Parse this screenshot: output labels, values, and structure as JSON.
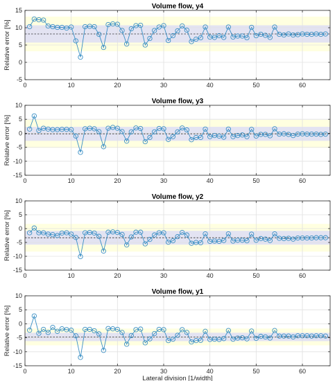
{
  "colors": {
    "band_outer": "#ffffe0",
    "band_inner": "#e3e3f2",
    "series": "#3a8fc4",
    "mean_line": "#333333",
    "grid": "#e0e0e0",
    "axes": "#262626"
  },
  "xlabel": "Lateral division [1/width]",
  "chart_data": [
    {
      "type": "line",
      "title": "Volume flow, y4",
      "ylabel": "Relative error [%]",
      "xlim": [
        0,
        66
      ],
      "ylim": [
        -5,
        15
      ],
      "xticks": [
        0,
        10,
        20,
        30,
        40,
        50,
        60
      ],
      "yticks": [
        -5,
        0,
        5,
        10,
        15
      ],
      "grid": true,
      "mean": 8.2,
      "band_outer": [
        3.2,
        13.2
      ],
      "band_inner": [
        5.7,
        10.7
      ],
      "x": [
        1,
        2,
        3,
        4,
        5,
        6,
        7,
        8,
        9,
        10,
        11,
        12,
        13,
        14,
        15,
        16,
        17,
        18,
        19,
        20,
        21,
        22,
        23,
        24,
        25,
        26,
        27,
        28,
        29,
        30,
        31,
        32,
        33,
        34,
        35,
        36,
        37,
        38,
        39,
        40,
        41,
        42,
        43,
        44,
        45,
        46,
        47,
        48,
        49,
        50,
        51,
        52,
        53,
        54,
        55,
        56,
        57,
        58,
        59,
        60,
        61,
        62,
        63,
        64,
        65
      ],
      "y": [
        10.3,
        12.5,
        12.3,
        12.2,
        10.5,
        10.3,
        10.1,
        10.1,
        9.9,
        10.2,
        6.2,
        1.5,
        10.3,
        10.4,
        10.3,
        8.1,
        4.3,
        10.9,
        11.1,
        11.0,
        9.2,
        5.3,
        9.7,
        10.6,
        10.7,
        5.0,
        6.9,
        9.2,
        10.2,
        10.6,
        6.3,
        7.7,
        9.1,
        10.5,
        9.3,
        6.0,
        6.7,
        7.1,
        10.2,
        7.3,
        7.2,
        7.7,
        7.2,
        10.2,
        7.3,
        7.6,
        7.6,
        7.1,
        10.1,
        7.7,
        8.1,
        7.8,
        7.2,
        10.2,
        8.1,
        7.9,
        8.2,
        7.9,
        8.0,
        8.2,
        8.1,
        8.1,
        8.2,
        8.1,
        8.2
      ]
    },
    {
      "type": "line",
      "title": "Volume flow, y3",
      "ylabel": "Relative error [%]",
      "xlim": [
        0,
        66
      ],
      "ylim": [
        -15,
        10
      ],
      "xticks": [
        0,
        10,
        20,
        30,
        40,
        50,
        60
      ],
      "yticks": [
        -15,
        -10,
        -5,
        0,
        5,
        10
      ],
      "grid": true,
      "mean": -0.2,
      "band_outer": [
        -5.2,
        4.8
      ],
      "band_inner": [
        -2.7,
        2.3
      ],
      "x": [
        1,
        2,
        3,
        4,
        5,
        6,
        7,
        8,
        9,
        10,
        11,
        12,
        13,
        14,
        15,
        16,
        17,
        18,
        19,
        20,
        21,
        22,
        23,
        24,
        25,
        26,
        27,
        28,
        29,
        30,
        31,
        32,
        33,
        34,
        35,
        36,
        37,
        38,
        39,
        40,
        41,
        42,
        43,
        44,
        45,
        46,
        47,
        48,
        49,
        50,
        51,
        52,
        53,
        54,
        55,
        56,
        57,
        58,
        59,
        60,
        61,
        62,
        63,
        64,
        65
      ],
      "y": [
        1.5,
        6.2,
        1.0,
        1.8,
        1.5,
        1.3,
        1.3,
        1.4,
        1.4,
        1.3,
        -1.0,
        -6.8,
        1.6,
        1.8,
        1.6,
        0.6,
        -4.8,
        1.8,
        2.1,
        1.8,
        0.6,
        -2.8,
        0.5,
        1.9,
        1.7,
        -3.0,
        -1.5,
        0.5,
        1.7,
        1.6,
        -2.2,
        -1.2,
        0.5,
        1.9,
        1.2,
        -2.3,
        -1.5,
        -1.5,
        1.5,
        -1.2,
        -0.8,
        -1.0,
        -1.4,
        1.5,
        -1.2,
        -0.8,
        -0.6,
        -1.2,
        1.4,
        -1.0,
        -0.4,
        -0.4,
        -0.9,
        1.6,
        -0.3,
        -0.2,
        -0.4,
        -0.8,
        -0.3,
        -0.2,
        -0.3,
        -0.3,
        -0.3,
        -0.4,
        -0.3
      ]
    },
    {
      "type": "line",
      "title": "Volume flow, y2",
      "ylabel": "Relative error [%]",
      "xlim": [
        0,
        66
      ],
      "ylim": [
        -15,
        10
      ],
      "xticks": [
        0,
        10,
        20,
        30,
        40,
        50,
        60
      ],
      "yticks": [
        -15,
        -10,
        -5,
        0,
        5,
        10
      ],
      "grid": true,
      "mean": -3.3,
      "band_outer": [
        -8.3,
        1.7
      ],
      "band_inner": [
        -5.8,
        -0.8
      ],
      "x": [
        1,
        2,
        3,
        4,
        5,
        6,
        7,
        8,
        9,
        10,
        11,
        12,
        13,
        14,
        15,
        16,
        17,
        18,
        19,
        20,
        21,
        22,
        23,
        24,
        25,
        26,
        27,
        28,
        29,
        30,
        31,
        32,
        33,
        34,
        35,
        36,
        37,
        38,
        39,
        40,
        41,
        42,
        43,
        44,
        45,
        46,
        47,
        48,
        49,
        50,
        51,
        52,
        53,
        54,
        55,
        56,
        57,
        58,
        59,
        60,
        61,
        62,
        63,
        64,
        65
      ],
      "y": [
        -1.5,
        0.2,
        -1.5,
        -1.5,
        -2.0,
        -2.2,
        -2.5,
        -1.6,
        -1.5,
        -2.0,
        -3.2,
        -10.1,
        -1.5,
        -1.4,
        -1.6,
        -2.8,
        -8.1,
        -1.3,
        -1.2,
        -1.4,
        -2.1,
        -5.9,
        -3.0,
        -1.3,
        -1.3,
        -5.5,
        -3.9,
        -2.3,
        -1.5,
        -1.5,
        -4.9,
        -4.4,
        -2.9,
        -1.4,
        -2.3,
        -5.3,
        -5.0,
        -5.1,
        -1.9,
        -4.6,
        -4.5,
        -4.6,
        -4.3,
        -1.9,
        -4.5,
        -4.2,
        -4.2,
        -4.4,
        -2.0,
        -4.2,
        -3.6,
        -3.8,
        -4.3,
        -1.9,
        -3.5,
        -3.6,
        -3.5,
        -3.8,
        -3.4,
        -3.4,
        -3.4,
        -3.4,
        -3.3,
        -3.3,
        -3.3
      ]
    },
    {
      "type": "line",
      "title": "Volume flow, y1",
      "ylabel": "Relative error [%]",
      "xlabel": "Lateral division [1/width]",
      "xlim": [
        0,
        66
      ],
      "ylim": [
        -15,
        10
      ],
      "xticks": [
        0,
        10,
        20,
        30,
        40,
        50,
        60
      ],
      "yticks": [
        -15,
        -10,
        -5,
        0,
        5,
        10
      ],
      "grid": true,
      "mean": -4.7,
      "band_outer": [
        -7.7,
        -1.7
      ],
      "band_inner": [
        -6.2,
        -3.2
      ],
      "x": [
        1,
        2,
        3,
        4,
        5,
        6,
        7,
        8,
        9,
        10,
        11,
        12,
        13,
        14,
        15,
        16,
        17,
        18,
        19,
        20,
        21,
        22,
        23,
        24,
        25,
        26,
        27,
        28,
        29,
        30,
        31,
        32,
        33,
        34,
        35,
        36,
        37,
        38,
        39,
        40,
        41,
        42,
        43,
        44,
        45,
        46,
        47,
        48,
        49,
        50,
        51,
        52,
        53,
        54,
        55,
        56,
        57,
        58,
        59,
        60,
        61,
        62,
        63,
        64,
        65
      ],
      "y": [
        -2.3,
        2.8,
        -3.4,
        -2.0,
        -3.1,
        -1.3,
        -2.7,
        -1.8,
        -2.1,
        -2.3,
        -4.3,
        -12.0,
        -2.0,
        -2.0,
        -2.5,
        -3.6,
        -9.5,
        -1.7,
        -1.8,
        -2.0,
        -3.1,
        -7.3,
        -4.2,
        -2.1,
        -1.9,
        -6.8,
        -5.4,
        -3.5,
        -2.0,
        -2.1,
        -6.0,
        -5.5,
        -4.1,
        -2.1,
        -3.1,
        -6.5,
        -6.0,
        -5.9,
        -2.7,
        -5.6,
        -5.5,
        -5.6,
        -5.3,
        -2.4,
        -5.5,
        -5.1,
        -5.0,
        -5.4,
        -2.6,
        -5.2,
        -4.5,
        -4.7,
        -5.1,
        -2.4,
        -4.4,
        -4.4,
        -4.4,
        -4.7,
        -4.3,
        -4.3,
        -4.3,
        -4.4,
        -4.3,
        -4.3,
        -4.4
      ]
    }
  ]
}
